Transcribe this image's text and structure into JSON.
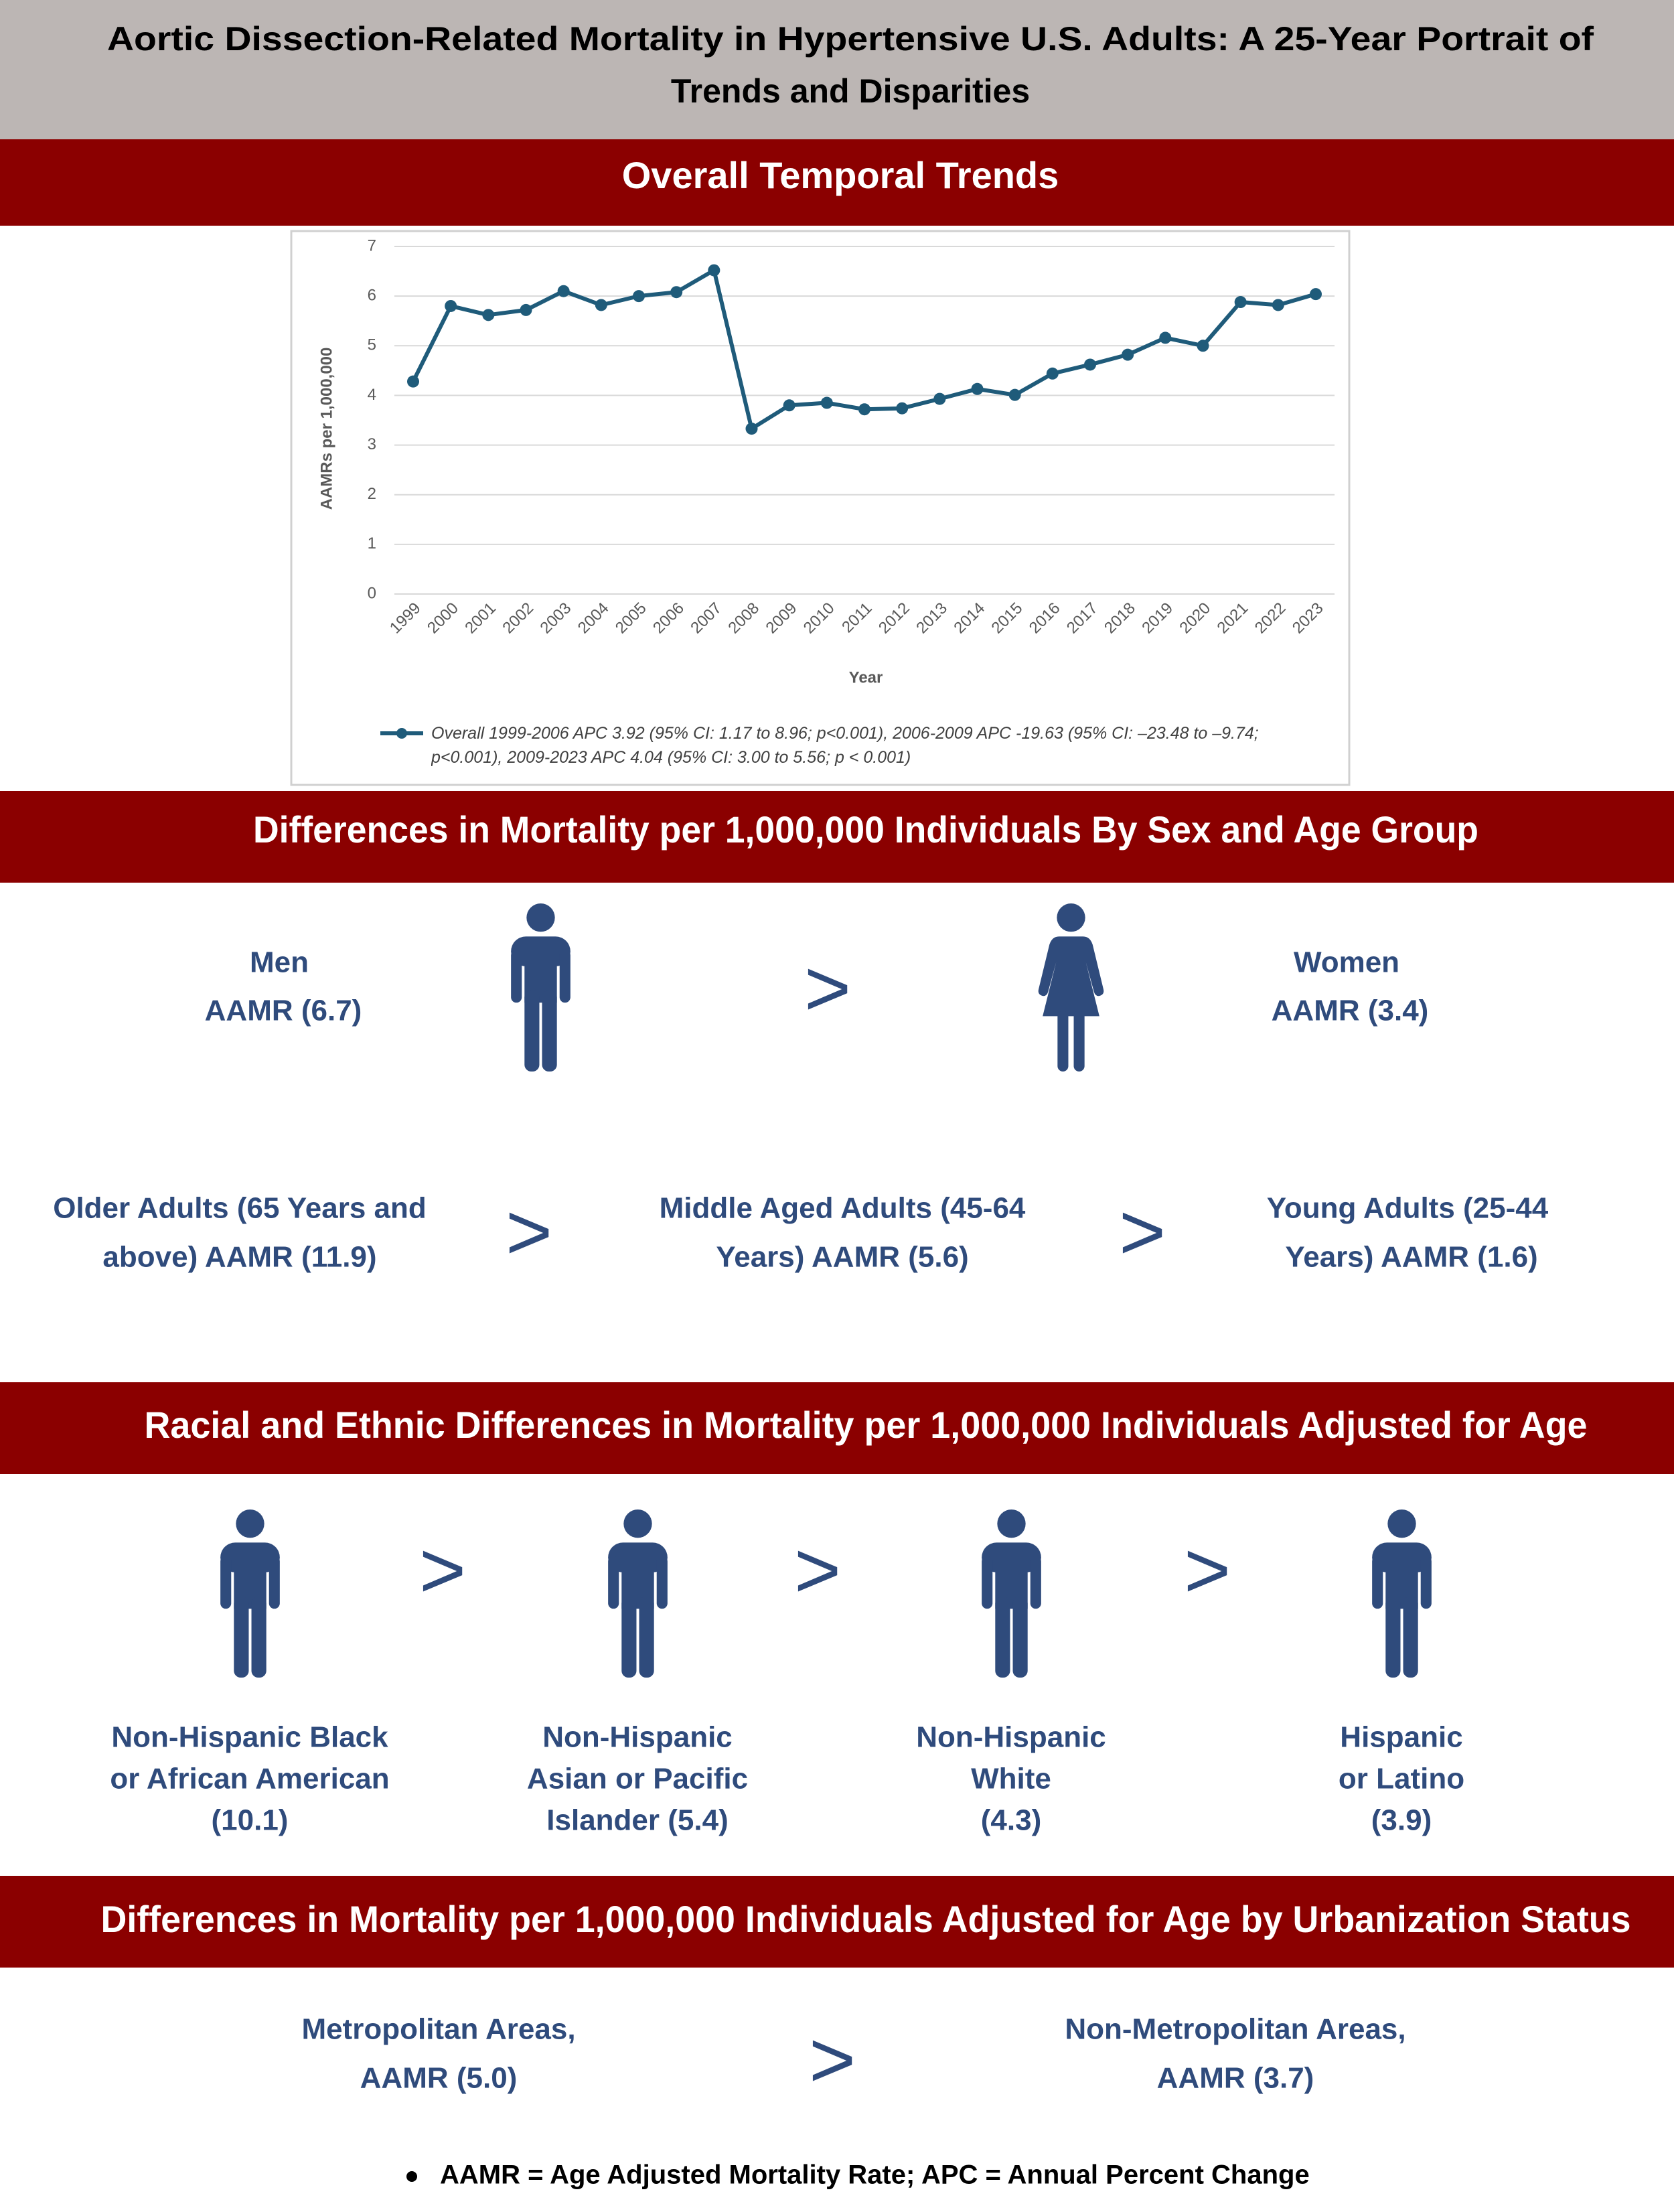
{
  "header": {
    "title_lines": [
      "Aortic Dissection-Related Mortality in Hypertensive U.S. Adults: A 25-Year Portrait of",
      "Trends and Disparities"
    ]
  },
  "overall": {
    "heading": "Overall Temporal Trends"
  },
  "chart_data": {
    "type": "line",
    "x_label": "Year",
    "y_label": "AAMRs per 1,000,000",
    "categories": [
      "1999",
      "2000",
      "2001",
      "2002",
      "2003",
      "2004",
      "2005",
      "2006",
      "2007",
      "2008",
      "2009",
      "2010",
      "2011",
      "2012",
      "2013",
      "2014",
      "2015",
      "2016",
      "2017",
      "2018",
      "2019",
      "2020",
      "2021",
      "2022",
      "2023"
    ],
    "series": [
      {
        "name": "Overall 1999-2006 APC 3.92 (95% CI: 1.17 to 8.96; p<0.001), 2006-2009 APC -19.63 (95% CI: –23.48 to –9.74; p<0.001), 2009-2023 APC 4.04 (95% CI: 3.00 to 5.56; p < 0.001)",
        "color": "#1f5b7a",
        "values": [
          4.28,
          5.8,
          5.62,
          5.72,
          6.1,
          5.82,
          6.0,
          6.08,
          6.52,
          3.33,
          3.8,
          3.85,
          3.72,
          3.74,
          3.93,
          4.13,
          4.01,
          4.44,
          4.62,
          4.82,
          5.16,
          5.0,
          5.88,
          5.82,
          6.04
        ]
      }
    ],
    "ylim": [
      0,
      7
    ],
    "yticks": [
      0,
      1,
      2,
      3,
      4,
      5,
      6,
      7
    ],
    "grid": true
  },
  "sex_age": {
    "heading": "Differences in Mortality per 1,000,000 Individuals By Sex and Age Group",
    "comparator": ">",
    "sex": [
      [
        "Men",
        "AAMR (6.7)"
      ],
      [
        "Women",
        "AAMR (3.4)"
      ]
    ],
    "age": [
      [
        "Older Adults (65 Years and",
        "above) AAMR (11.9)"
      ],
      [
        "Middle Aged Adults (45-64",
        "Years) AAMR (5.6)"
      ],
      [
        "Young Adults (25-44",
        "Years) AAMR (1.6)"
      ]
    ]
  },
  "race": {
    "heading": "Racial and Ethnic Differences in Mortality per 1,000,000 Individuals Adjusted for Age",
    "groups": [
      [
        "Non-Hispanic Black",
        "or African American",
        "(10.1)"
      ],
      [
        "Non-Hispanic",
        "Asian or Pacific",
        "Islander (5.4)"
      ],
      [
        "Non-Hispanic",
        "White",
        "(4.3)"
      ],
      [
        "Hispanic",
        "or Latino",
        "(3.9)"
      ]
    ]
  },
  "urban": {
    "heading": "Differences in Mortality per 1,000,000 Individuals Adjusted for Age by Urbanization Status",
    "groups": [
      [
        "Metropolitan Areas,",
        "AAMR (5.0)"
      ],
      [
        "Non-Metropolitan Areas,",
        "AAMR (3.7)"
      ]
    ]
  },
  "footnote": "AAMR = Age Adjusted Mortality Rate; APC = Annual Percent Change"
}
